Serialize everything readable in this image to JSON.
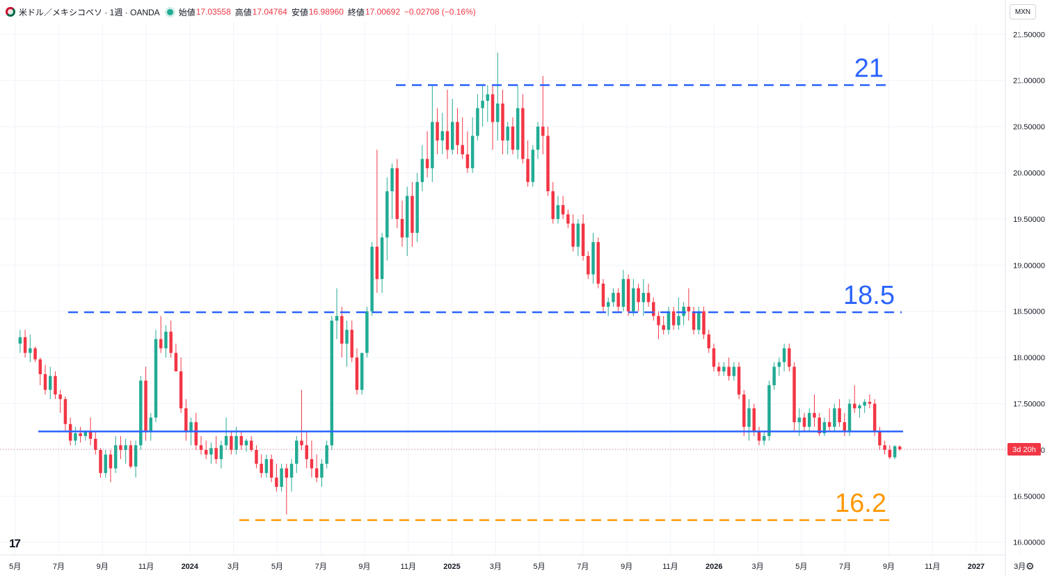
{
  "legend": {
    "symbol": "米ドル／メキシコペソ · 1週 · OANDA",
    "open_label": "始値",
    "open": "17.03558",
    "high_label": "高値",
    "high": "17.04764",
    "low_label": "安値",
    "low": "16.98960",
    "close_label": "終値",
    "close": "17.00692",
    "change": "−0.02708 (−0.16%)"
  },
  "currency": "MXN",
  "countdown": "3d 20h",
  "colors": {
    "up": "#22ab94",
    "down": "#f23645",
    "level_blue": "#2962ff",
    "level_orange": "#ff9800"
  },
  "icons": {
    "logo": "tradingview-logo-icon",
    "settings": "gear-icon",
    "flag": "usd-mxn-flag-icon",
    "status": "market-status-icon"
  },
  "chart_data": {
    "type": "candlestick",
    "ylim": [
      15.87,
      21.63
    ],
    "y_ticks": [
      "21.50000",
      "21.00000",
      "20.50000",
      "20.00000",
      "19.50000",
      "19.00000",
      "18.50000",
      "18.00000",
      "17.50000",
      "17.00000",
      "16.50000",
      "16.00000"
    ],
    "x_ticks": [
      "5月",
      "7月",
      "9月",
      "11月",
      "2024",
      "3月",
      "5月",
      "7月",
      "9月",
      "11月",
      "2025",
      "3月",
      "5月",
      "7月",
      "9月",
      "11月",
      "2026",
      "3月",
      "5月",
      "7月",
      "9月",
      "11月",
      "2027",
      "3月"
    ],
    "x_range_weeks": [
      -4,
      196
    ],
    "levels": [
      {
        "label": "21",
        "value": 20.95,
        "style": "dashed",
        "color": "#2962ff"
      },
      {
        "label": "18.5",
        "value": 18.49,
        "style": "dashed",
        "color": "#2962ff"
      },
      {
        "label": "",
        "value": 17.2,
        "style": "solid",
        "color": "#2962ff"
      },
      {
        "label": "16.2",
        "value": 16.24,
        "style": "dashed",
        "color": "#ff9800"
      }
    ],
    "candles_ohlc": [
      [
        18.15,
        18.3,
        18.05,
        18.22
      ],
      [
        18.22,
        18.3,
        18.0,
        18.05
      ],
      [
        18.05,
        18.25,
        17.95,
        18.1
      ],
      [
        18.1,
        18.12,
        17.95,
        17.98
      ],
      [
        17.98,
        18.0,
        17.7,
        17.82
      ],
      [
        17.82,
        17.92,
        17.6,
        17.65
      ],
      [
        17.65,
        17.9,
        17.55,
        17.8
      ],
      [
        17.8,
        17.85,
        17.55,
        17.6
      ],
      [
        17.6,
        17.65,
        17.4,
        17.55
      ],
      [
        17.55,
        17.58,
        17.2,
        17.28
      ],
      [
        17.28,
        17.35,
        17.05,
        17.1
      ],
      [
        17.1,
        17.25,
        17.05,
        17.18
      ],
      [
        17.18,
        17.25,
        17.08,
        17.15
      ],
      [
        17.15,
        17.2,
        17.1,
        17.2
      ],
      [
        17.2,
        17.35,
        17.05,
        17.12
      ],
      [
        17.12,
        17.2,
        16.95,
        17.0
      ],
      [
        17.0,
        17.02,
        16.7,
        16.75
      ],
      [
        16.75,
        17.0,
        16.7,
        16.95
      ],
      [
        16.95,
        17.0,
        16.65,
        16.8
      ],
      [
        16.8,
        17.15,
        16.75,
        17.05
      ],
      [
        17.05,
        17.15,
        16.9,
        17.0
      ],
      [
        17.0,
        17.12,
        16.85,
        17.05
      ],
      [
        17.05,
        17.1,
        16.8,
        16.82
      ],
      [
        16.82,
        17.1,
        16.7,
        17.05
      ],
      [
        17.05,
        17.8,
        17.0,
        17.75
      ],
      [
        17.75,
        17.9,
        17.1,
        17.2
      ],
      [
        17.2,
        17.4,
        17.1,
        17.35
      ],
      [
        17.35,
        18.3,
        17.3,
        18.2
      ],
      [
        18.2,
        18.45,
        18.05,
        18.1
      ],
      [
        18.1,
        18.35,
        18.0,
        18.28
      ],
      [
        18.28,
        18.4,
        18.0,
        18.05
      ],
      [
        18.05,
        18.15,
        17.9,
        17.85
      ],
      [
        17.85,
        18.0,
        17.4,
        17.45
      ],
      [
        17.45,
        17.55,
        17.1,
        17.2
      ],
      [
        17.2,
        17.35,
        17.05,
        17.3
      ],
      [
        17.3,
        17.4,
        17.0,
        17.05
      ],
      [
        17.05,
        17.15,
        16.95,
        17.0
      ],
      [
        17.0,
        17.1,
        16.9,
        16.95
      ],
      [
        16.95,
        17.08,
        16.85,
        17.02
      ],
      [
        17.02,
        17.15,
        16.85,
        16.9
      ],
      [
        16.9,
        17.1,
        16.8,
        17.05
      ],
      [
        17.05,
        17.35,
        17.0,
        17.15
      ],
      [
        17.15,
        17.2,
        16.95,
        17.0
      ],
      [
        17.0,
        17.25,
        16.95,
        17.15
      ],
      [
        17.15,
        17.2,
        17.0,
        17.05
      ],
      [
        17.05,
        17.12,
        16.98,
        17.1
      ],
      [
        17.1,
        17.15,
        16.98,
        17.0
      ],
      [
        17.0,
        17.05,
        16.8,
        16.85
      ],
      [
        16.85,
        16.95,
        16.7,
        16.75
      ],
      [
        16.75,
        16.95,
        16.7,
        16.9
      ],
      [
        16.9,
        16.95,
        16.65,
        16.7
      ],
      [
        16.7,
        16.85,
        16.55,
        16.6
      ],
      [
        16.6,
        16.85,
        16.55,
        16.8
      ],
      [
        16.8,
        16.85,
        16.3,
        16.7
      ],
      [
        16.7,
        16.9,
        16.55,
        16.85
      ],
      [
        16.85,
        17.15,
        16.75,
        17.1
      ],
      [
        17.1,
        17.65,
        17.0,
        17.05
      ],
      [
        17.05,
        17.2,
        16.8,
        16.9
      ],
      [
        16.9,
        17.1,
        16.7,
        16.8
      ],
      [
        16.8,
        16.95,
        16.65,
        16.7
      ],
      [
        16.7,
        16.9,
        16.6,
        16.85
      ],
      [
        16.85,
        17.1,
        16.8,
        17.05
      ],
      [
        17.05,
        18.45,
        17.0,
        18.4
      ],
      [
        18.4,
        18.75,
        18.2,
        18.45
      ],
      [
        18.45,
        18.55,
        18.0,
        18.15
      ],
      [
        18.15,
        18.4,
        17.9,
        18.3
      ],
      [
        18.3,
        18.4,
        17.95,
        18.0
      ],
      [
        18.0,
        18.1,
        17.6,
        17.65
      ],
      [
        17.65,
        18.05,
        17.6,
        18.05
      ],
      [
        18.05,
        18.55,
        18.0,
        18.5
      ],
      [
        18.5,
        19.25,
        18.45,
        19.2
      ],
      [
        19.2,
        20.25,
        18.7,
        18.85
      ],
      [
        18.85,
        19.35,
        18.7,
        19.3
      ],
      [
        19.3,
        19.95,
        19.05,
        19.8
      ],
      [
        19.8,
        20.1,
        19.5,
        20.05
      ],
      [
        20.05,
        20.15,
        19.4,
        19.5
      ],
      [
        19.5,
        19.7,
        19.2,
        19.3
      ],
      [
        19.3,
        19.85,
        19.1,
        19.75
      ],
      [
        19.75,
        19.9,
        19.2,
        19.35
      ],
      [
        19.35,
        20.0,
        19.25,
        19.9
      ],
      [
        19.9,
        20.3,
        19.8,
        20.15
      ],
      [
        20.15,
        20.45,
        19.95,
        20.05
      ],
      [
        20.05,
        20.95,
        19.9,
        20.55
      ],
      [
        20.55,
        20.7,
        20.2,
        20.35
      ],
      [
        20.35,
        20.65,
        20.2,
        20.45
      ],
      [
        20.45,
        20.9,
        20.15,
        20.25
      ],
      [
        20.25,
        20.8,
        20.2,
        20.55
      ],
      [
        20.55,
        20.7,
        20.2,
        20.3
      ],
      [
        20.3,
        20.6,
        20.15,
        20.2
      ],
      [
        20.2,
        20.45,
        20.0,
        20.05
      ],
      [
        20.05,
        20.6,
        20.0,
        20.4
      ],
      [
        20.4,
        20.85,
        20.35,
        20.7
      ],
      [
        20.7,
        20.95,
        20.5,
        20.78
      ],
      [
        20.78,
        20.95,
        20.55,
        20.85
      ],
      [
        20.85,
        20.95,
        20.25,
        20.55
      ],
      [
        20.55,
        21.3,
        20.35,
        20.75
      ],
      [
        20.75,
        20.9,
        20.2,
        20.35
      ],
      [
        20.35,
        20.55,
        20.2,
        20.5
      ],
      [
        20.5,
        20.6,
        20.2,
        20.25
      ],
      [
        20.25,
        20.95,
        20.15,
        20.7
      ],
      [
        20.7,
        20.85,
        20.1,
        20.15
      ],
      [
        20.15,
        20.35,
        19.85,
        19.9
      ],
      [
        19.9,
        20.3,
        19.85,
        20.25
      ],
      [
        20.25,
        20.55,
        20.15,
        20.5
      ],
      [
        20.5,
        21.05,
        20.2,
        20.4
      ],
      [
        20.4,
        20.5,
        19.75,
        19.8
      ],
      [
        19.8,
        19.9,
        19.45,
        19.5
      ],
      [
        19.5,
        19.75,
        19.45,
        19.65
      ],
      [
        19.65,
        19.75,
        19.5,
        19.55
      ],
      [
        19.55,
        19.6,
        19.4,
        19.45
      ],
      [
        19.45,
        19.55,
        19.15,
        19.2
      ],
      [
        19.2,
        19.5,
        19.1,
        19.45
      ],
      [
        19.45,
        19.55,
        19.05,
        19.1
      ],
      [
        19.1,
        19.15,
        18.85,
        18.9
      ],
      [
        18.9,
        19.35,
        18.8,
        19.25
      ],
      [
        19.25,
        19.3,
        18.75,
        18.8
      ],
      [
        18.8,
        18.85,
        18.5,
        18.55
      ],
      [
        18.55,
        18.65,
        18.45,
        18.6
      ],
      [
        18.6,
        18.75,
        18.55,
        18.7
      ],
      [
        18.7,
        18.75,
        18.5,
        18.55
      ],
      [
        18.55,
        18.95,
        18.5,
        18.85
      ],
      [
        18.85,
        18.9,
        18.45,
        18.5
      ],
      [
        18.5,
        18.85,
        18.45,
        18.75
      ],
      [
        18.75,
        18.8,
        18.5,
        18.6
      ],
      [
        18.6,
        18.85,
        18.45,
        18.7
      ],
      [
        18.7,
        18.8,
        18.55,
        18.6
      ],
      [
        18.6,
        18.65,
        18.4,
        18.45
      ],
      [
        18.45,
        18.5,
        18.2,
        18.35
      ],
      [
        18.35,
        18.45,
        18.25,
        18.3
      ],
      [
        18.3,
        18.55,
        18.25,
        18.5
      ],
      [
        18.5,
        18.55,
        18.3,
        18.35
      ],
      [
        18.35,
        18.65,
        18.3,
        18.45
      ],
      [
        18.45,
        18.6,
        18.35,
        18.55
      ],
      [
        18.55,
        18.75,
        18.4,
        18.5
      ],
      [
        18.5,
        18.55,
        18.25,
        18.3
      ],
      [
        18.3,
        18.55,
        18.25,
        18.5
      ],
      [
        18.5,
        18.55,
        18.2,
        18.25
      ],
      [
        18.25,
        18.3,
        18.05,
        18.1
      ],
      [
        18.1,
        18.15,
        17.85,
        17.9
      ],
      [
        17.9,
        17.95,
        17.8,
        17.85
      ],
      [
        17.85,
        17.95,
        17.8,
        17.9
      ],
      [
        17.9,
        18.0,
        17.75,
        17.8
      ],
      [
        17.8,
        17.95,
        17.75,
        17.9
      ],
      [
        17.9,
        17.95,
        17.55,
        17.6
      ],
      [
        17.6,
        17.65,
        17.15,
        17.25
      ],
      [
        17.25,
        17.55,
        17.1,
        17.45
      ],
      [
        17.45,
        17.5,
        17.15,
        17.2
      ],
      [
        17.2,
        17.25,
        17.05,
        17.1
      ],
      [
        17.1,
        17.2,
        17.05,
        17.15
      ],
      [
        17.15,
        17.75,
        17.1,
        17.7
      ],
      [
        17.7,
        17.95,
        17.65,
        17.9
      ],
      [
        17.9,
        18.0,
        17.8,
        17.95
      ],
      [
        17.95,
        18.15,
        17.85,
        18.1
      ],
      [
        18.1,
        18.15,
        17.85,
        17.9
      ],
      [
        17.9,
        17.95,
        17.2,
        17.3
      ],
      [
        17.3,
        17.45,
        17.15,
        17.35
      ],
      [
        17.35,
        17.4,
        17.2,
        17.25
      ],
      [
        17.25,
        17.45,
        17.2,
        17.4
      ],
      [
        17.4,
        17.6,
        17.25,
        17.35
      ],
      [
        17.35,
        17.4,
        17.15,
        17.18
      ],
      [
        17.18,
        17.35,
        17.15,
        17.3
      ],
      [
        17.3,
        17.45,
        17.2,
        17.25
      ],
      [
        17.25,
        17.5,
        17.2,
        17.45
      ],
      [
        17.45,
        17.55,
        17.25,
        17.3
      ],
      [
        17.3,
        17.4,
        17.15,
        17.2
      ],
      [
        17.2,
        17.55,
        17.15,
        17.5
      ],
      [
        17.5,
        17.7,
        17.4,
        17.45
      ],
      [
        17.45,
        17.5,
        17.35,
        17.48
      ],
      [
        17.48,
        17.55,
        17.4,
        17.52
      ],
      [
        17.52,
        17.6,
        17.45,
        17.5
      ],
      [
        17.5,
        17.55,
        17.15,
        17.2
      ],
      [
        17.2,
        17.25,
        17.0,
        17.05
      ],
      [
        17.05,
        17.1,
        16.95,
        17.0
      ],
      [
        17.0,
        17.05,
        16.9,
        16.92
      ],
      [
        16.92,
        17.05,
        16.9,
        17.04
      ],
      [
        17.03558,
        17.04764,
        16.9896,
        17.00692
      ]
    ]
  }
}
